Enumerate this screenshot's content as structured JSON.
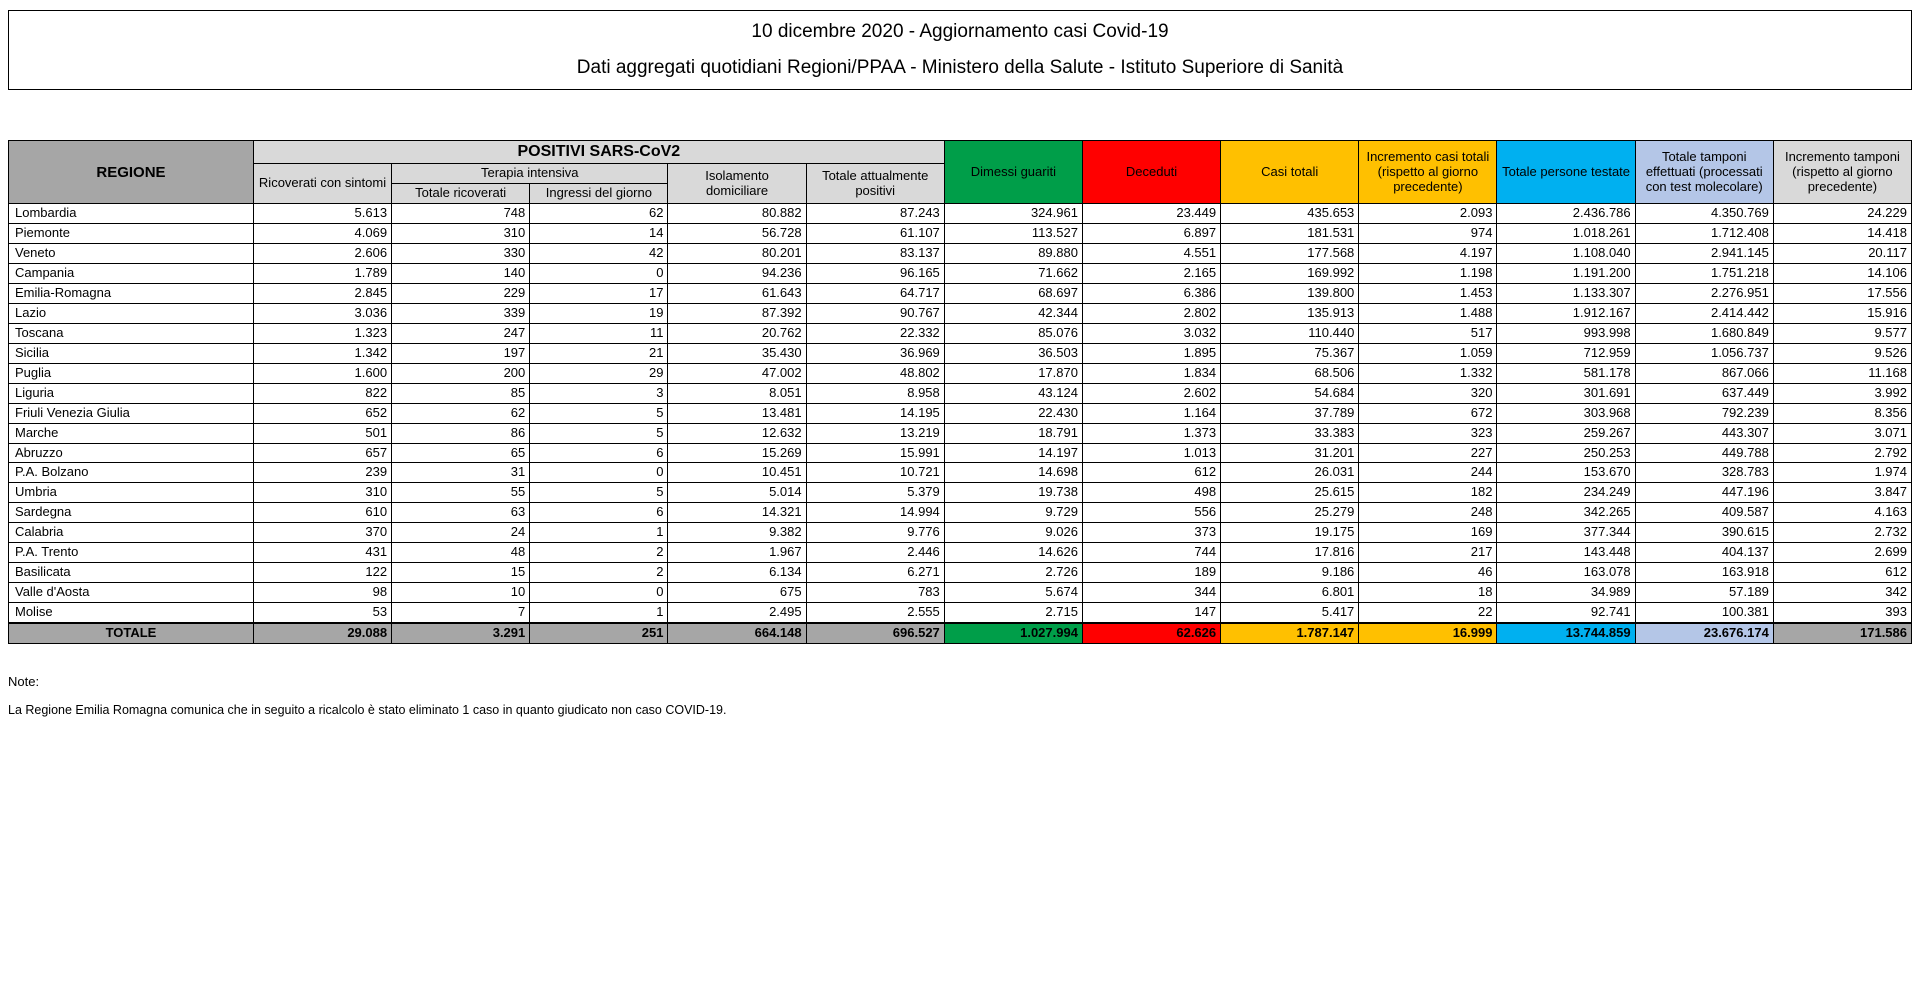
{
  "header": {
    "title1": "10 dicembre 2020 - Aggiornamento casi Covid-19",
    "title2": "Dati aggregati quotidiani Regioni/PPAA - Ministero della Salute - Istituto Superiore di Sanità"
  },
  "columns": {
    "regione": "REGIONE",
    "positivi_group": "POSITIVI SARS-CoV2",
    "terapia_group": "Terapia intensiva",
    "ric_sintomi": "Ricoverati con sintomi",
    "tot_ricoverati": "Totale ricoverati",
    "ingressi_giorno": "Ingressi del giorno",
    "isol_domic": "Isolamento domiciliare",
    "tot_positivi": "Totale attualmente positivi",
    "dimessi": "Dimessi guariti",
    "deceduti": "Deceduti",
    "casi_totali": "Casi totali",
    "incr_casi": "Incremento casi totali (rispetto al giorno precedente)",
    "tot_persone": "Totale persone testate",
    "tot_tamponi": "Totale tamponi effettuati (processati con test molecolare)",
    "incr_tamponi": "Incremento tamponi (rispetto al giorno precedente)"
  },
  "rows": [
    {
      "reg": "Lombardia",
      "v": [
        "5.613",
        "748",
        "62",
        "80.882",
        "87.243",
        "324.961",
        "23.449",
        "435.653",
        "2.093",
        "2.436.786",
        "4.350.769",
        "24.229"
      ]
    },
    {
      "reg": "Piemonte",
      "v": [
        "4.069",
        "310",
        "14",
        "56.728",
        "61.107",
        "113.527",
        "6.897",
        "181.531",
        "974",
        "1.018.261",
        "1.712.408",
        "14.418"
      ]
    },
    {
      "reg": "Veneto",
      "v": [
        "2.606",
        "330",
        "42",
        "80.201",
        "83.137",
        "89.880",
        "4.551",
        "177.568",
        "4.197",
        "1.108.040",
        "2.941.145",
        "20.117"
      ]
    },
    {
      "reg": "Campania",
      "v": [
        "1.789",
        "140",
        "0",
        "94.236",
        "96.165",
        "71.662",
        "2.165",
        "169.992",
        "1.198",
        "1.191.200",
        "1.751.218",
        "14.106"
      ]
    },
    {
      "reg": "Emilia-Romagna",
      "v": [
        "2.845",
        "229",
        "17",
        "61.643",
        "64.717",
        "68.697",
        "6.386",
        "139.800",
        "1.453",
        "1.133.307",
        "2.276.951",
        "17.556"
      ]
    },
    {
      "reg": "Lazio",
      "v": [
        "3.036",
        "339",
        "19",
        "87.392",
        "90.767",
        "42.344",
        "2.802",
        "135.913",
        "1.488",
        "1.912.167",
        "2.414.442",
        "15.916"
      ]
    },
    {
      "reg": "Toscana",
      "v": [
        "1.323",
        "247",
        "11",
        "20.762",
        "22.332",
        "85.076",
        "3.032",
        "110.440",
        "517",
        "993.998",
        "1.680.849",
        "9.577"
      ]
    },
    {
      "reg": "Sicilia",
      "v": [
        "1.342",
        "197",
        "21",
        "35.430",
        "36.969",
        "36.503",
        "1.895",
        "75.367",
        "1.059",
        "712.959",
        "1.056.737",
        "9.526"
      ]
    },
    {
      "reg": "Puglia",
      "v": [
        "1.600",
        "200",
        "29",
        "47.002",
        "48.802",
        "17.870",
        "1.834",
        "68.506",
        "1.332",
        "581.178",
        "867.066",
        "11.168"
      ]
    },
    {
      "reg": "Liguria",
      "v": [
        "822",
        "85",
        "3",
        "8.051",
        "8.958",
        "43.124",
        "2.602",
        "54.684",
        "320",
        "301.691",
        "637.449",
        "3.992"
      ]
    },
    {
      "reg": "Friuli Venezia Giulia",
      "v": [
        "652",
        "62",
        "5",
        "13.481",
        "14.195",
        "22.430",
        "1.164",
        "37.789",
        "672",
        "303.968",
        "792.239",
        "8.356"
      ]
    },
    {
      "reg": "Marche",
      "v": [
        "501",
        "86",
        "5",
        "12.632",
        "13.219",
        "18.791",
        "1.373",
        "33.383",
        "323",
        "259.267",
        "443.307",
        "3.071"
      ]
    },
    {
      "reg": "Abruzzo",
      "v": [
        "657",
        "65",
        "6",
        "15.269",
        "15.991",
        "14.197",
        "1.013",
        "31.201",
        "227",
        "250.253",
        "449.788",
        "2.792"
      ]
    },
    {
      "reg": "P.A. Bolzano",
      "v": [
        "239",
        "31",
        "0",
        "10.451",
        "10.721",
        "14.698",
        "612",
        "26.031",
        "244",
        "153.670",
        "328.783",
        "1.974"
      ]
    },
    {
      "reg": "Umbria",
      "v": [
        "310",
        "55",
        "5",
        "5.014",
        "5.379",
        "19.738",
        "498",
        "25.615",
        "182",
        "234.249",
        "447.196",
        "3.847"
      ]
    },
    {
      "reg": "Sardegna",
      "v": [
        "610",
        "63",
        "6",
        "14.321",
        "14.994",
        "9.729",
        "556",
        "25.279",
        "248",
        "342.265",
        "409.587",
        "4.163"
      ]
    },
    {
      "reg": "Calabria",
      "v": [
        "370",
        "24",
        "1",
        "9.382",
        "9.776",
        "9.026",
        "373",
        "19.175",
        "169",
        "377.344",
        "390.615",
        "2.732"
      ]
    },
    {
      "reg": "P.A. Trento",
      "v": [
        "431",
        "48",
        "2",
        "1.967",
        "2.446",
        "14.626",
        "744",
        "17.816",
        "217",
        "143.448",
        "404.137",
        "2.699"
      ]
    },
    {
      "reg": "Basilicata",
      "v": [
        "122",
        "15",
        "2",
        "6.134",
        "6.271",
        "2.726",
        "189",
        "9.186",
        "46",
        "163.078",
        "163.918",
        "612"
      ]
    },
    {
      "reg": "Valle d'Aosta",
      "v": [
        "98",
        "10",
        "0",
        "675",
        "783",
        "5.674",
        "344",
        "6.801",
        "18",
        "34.989",
        "57.189",
        "342"
      ]
    },
    {
      "reg": "Molise",
      "v": [
        "53",
        "7",
        "1",
        "2.495",
        "2.555",
        "2.715",
        "147",
        "5.417",
        "22",
        "92.741",
        "100.381",
        "393"
      ]
    }
  ],
  "totals": {
    "label": "TOTALE",
    "v": [
      "29.088",
      "3.291",
      "251",
      "664.148",
      "696.527",
      "1.027.994",
      "62.626",
      "1.787.147",
      "16.999",
      "13.744.859",
      "23.676.174",
      "171.586"
    ]
  },
  "notes": {
    "title": "Note:",
    "line": "La Regione Emilia Romagna comunica che in seguito a ricalcolo è stato eliminato 1 caso in quanto giudicato non caso COVID-19."
  },
  "colors": {
    "grey_dark": "#a6a6a6",
    "grey_light": "#d9d9d9",
    "green": "#009e49",
    "red": "#ff0000",
    "orange": "#ffc000",
    "blue": "#00b0f0",
    "lavender": "#b4c6e7"
  }
}
